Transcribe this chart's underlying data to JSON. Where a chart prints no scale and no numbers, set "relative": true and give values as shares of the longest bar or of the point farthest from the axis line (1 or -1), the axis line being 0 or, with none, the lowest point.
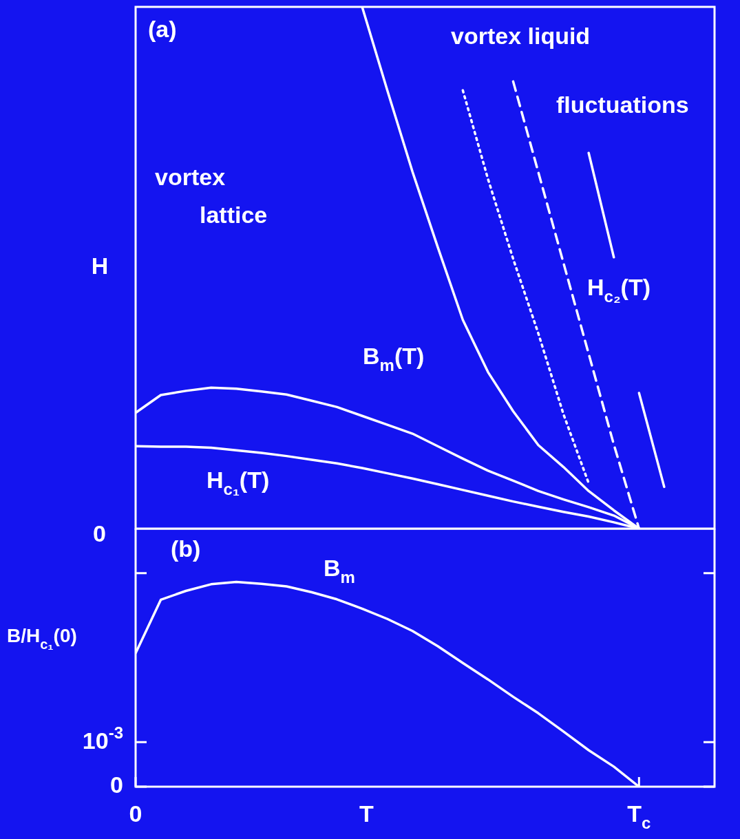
{
  "chart_data": [
    {
      "type": "line",
      "relative": true,
      "categories": [
        null,
        null,
        null,
        null,
        null,
        null,
        null,
        null,
        null,
        null,
        null,
        null,
        null,
        null,
        null,
        null,
        null,
        null,
        null,
        null,
        null,
        null,
        null,
        null
      ],
      "ylabel": "H",
      "marker": "none",
      "legend": false,
      "annotations": [
        "(a)",
        "vortex lattice",
        "0",
        "vortex liquid",
        "fluctuations",
        "H$_{c₂}$(T)",
        "B$_{m}$(T)",
        "H$_{c₁}$(T)"
      ],
      "series": [
        {
          "color": "#ffffff",
          "values": [
            0.158,
            0.157,
            0.157,
            0.155,
            0.15,
            0.145,
            0.139,
            0.132,
            0.125,
            0.116,
            0.106,
            0.096,
            0.085,
            0.074,
            0.063,
            0.052,
            0.042,
            0.032,
            0.023,
            0.012,
            0,
            null,
            null,
            null
          ]
        },
        {
          "color": "#ffffff",
          "values": [
            0.222,
            0.256,
            0.264,
            0.27,
            0.268,
            0.263,
            0.257,
            0.245,
            0.233,
            0.216,
            0.199,
            0.182,
            0.158,
            0.134,
            0.111,
            0.092,
            0.072,
            0.056,
            0.041,
            0.025,
            0,
            null,
            null,
            null
          ]
        },
        {
          "color": "#ffffff",
          "values": [
            null,
            null,
            null,
            null,
            null,
            null,
            null,
            null,
            null,
            1,
            0.84,
            0.684,
            0.54,
            0.4,
            0.3,
            0.225,
            0.16,
            0.118,
            0.072,
            0.035,
            0,
            null,
            null,
            null
          ]
        },
        {
          "color": "#ffffff",
          "line_style": "dashed",
          "values": [
            null,
            null,
            null,
            null,
            null,
            null,
            null,
            null,
            null,
            null,
            null,
            null,
            null,
            null,
            null,
            0.857,
            0.683,
            0.509,
            0.335,
            0.161,
            0,
            null,
            null,
            null
          ]
        },
        {
          "color": "#ffffff",
          "line_style": "dotted",
          "values": [
            null,
            null,
            null,
            null,
            null,
            null,
            null,
            null,
            null,
            null,
            null,
            null,
            null,
            0.84,
            0.67,
            0.517,
            0.374,
            0.219,
            0.087,
            null,
            null,
            null,
            null,
            null
          ]
        },
        {
          "color": "#ffffff",
          "values": [
            null,
            null,
            null,
            null,
            null,
            null,
            null,
            null,
            null,
            null,
            null,
            null,
            null,
            null,
            null,
            null,
            null,
            null,
            0.72,
            0.52,
            null,
            null,
            null,
            null
          ]
        },
        {
          "color": "#ffffff",
          "values": [
            null,
            null,
            null,
            null,
            null,
            null,
            null,
            null,
            null,
            null,
            null,
            null,
            null,
            null,
            null,
            null,
            null,
            null,
            null,
            null,
            0.26,
            0.08,
            null,
            null
          ]
        }
      ]
    },
    {
      "type": "line",
      "categories": [
        "0",
        null,
        null,
        null,
        null,
        null,
        null,
        null,
        null,
        null,
        null,
        null,
        null,
        null,
        null,
        null,
        null,
        null,
        null,
        null,
        "T$_{c}$",
        null,
        null,
        null
      ],
      "ylim": [
        0,
        0.0058
      ],
      "yticks": [
        0,
        {
          "value": 0.001,
          "label": "10$^{-3}$"
        },
        {
          "value": 0.0048,
          "label": null
        }
      ],
      "xlabel": "T",
      "ylabel": "B/H$_{c₁}$(0)",
      "marker": "none",
      "legend": false,
      "annotations": [
        "(b)",
        "B$_{m}$"
      ],
      "series": [
        {
          "color": "#ffffff",
          "values": [
            0.003,
            0.0042,
            0.0044,
            0.00455,
            0.0046,
            0.00456,
            0.0045,
            0.00437,
            0.00421,
            0.004,
            0.00377,
            0.0035,
            0.00316,
            0.00278,
            0.00241,
            0.00202,
            0.00165,
            0.00124,
            0.00082,
            0.00045,
            0,
            null,
            null,
            null
          ]
        }
      ]
    }
  ]
}
